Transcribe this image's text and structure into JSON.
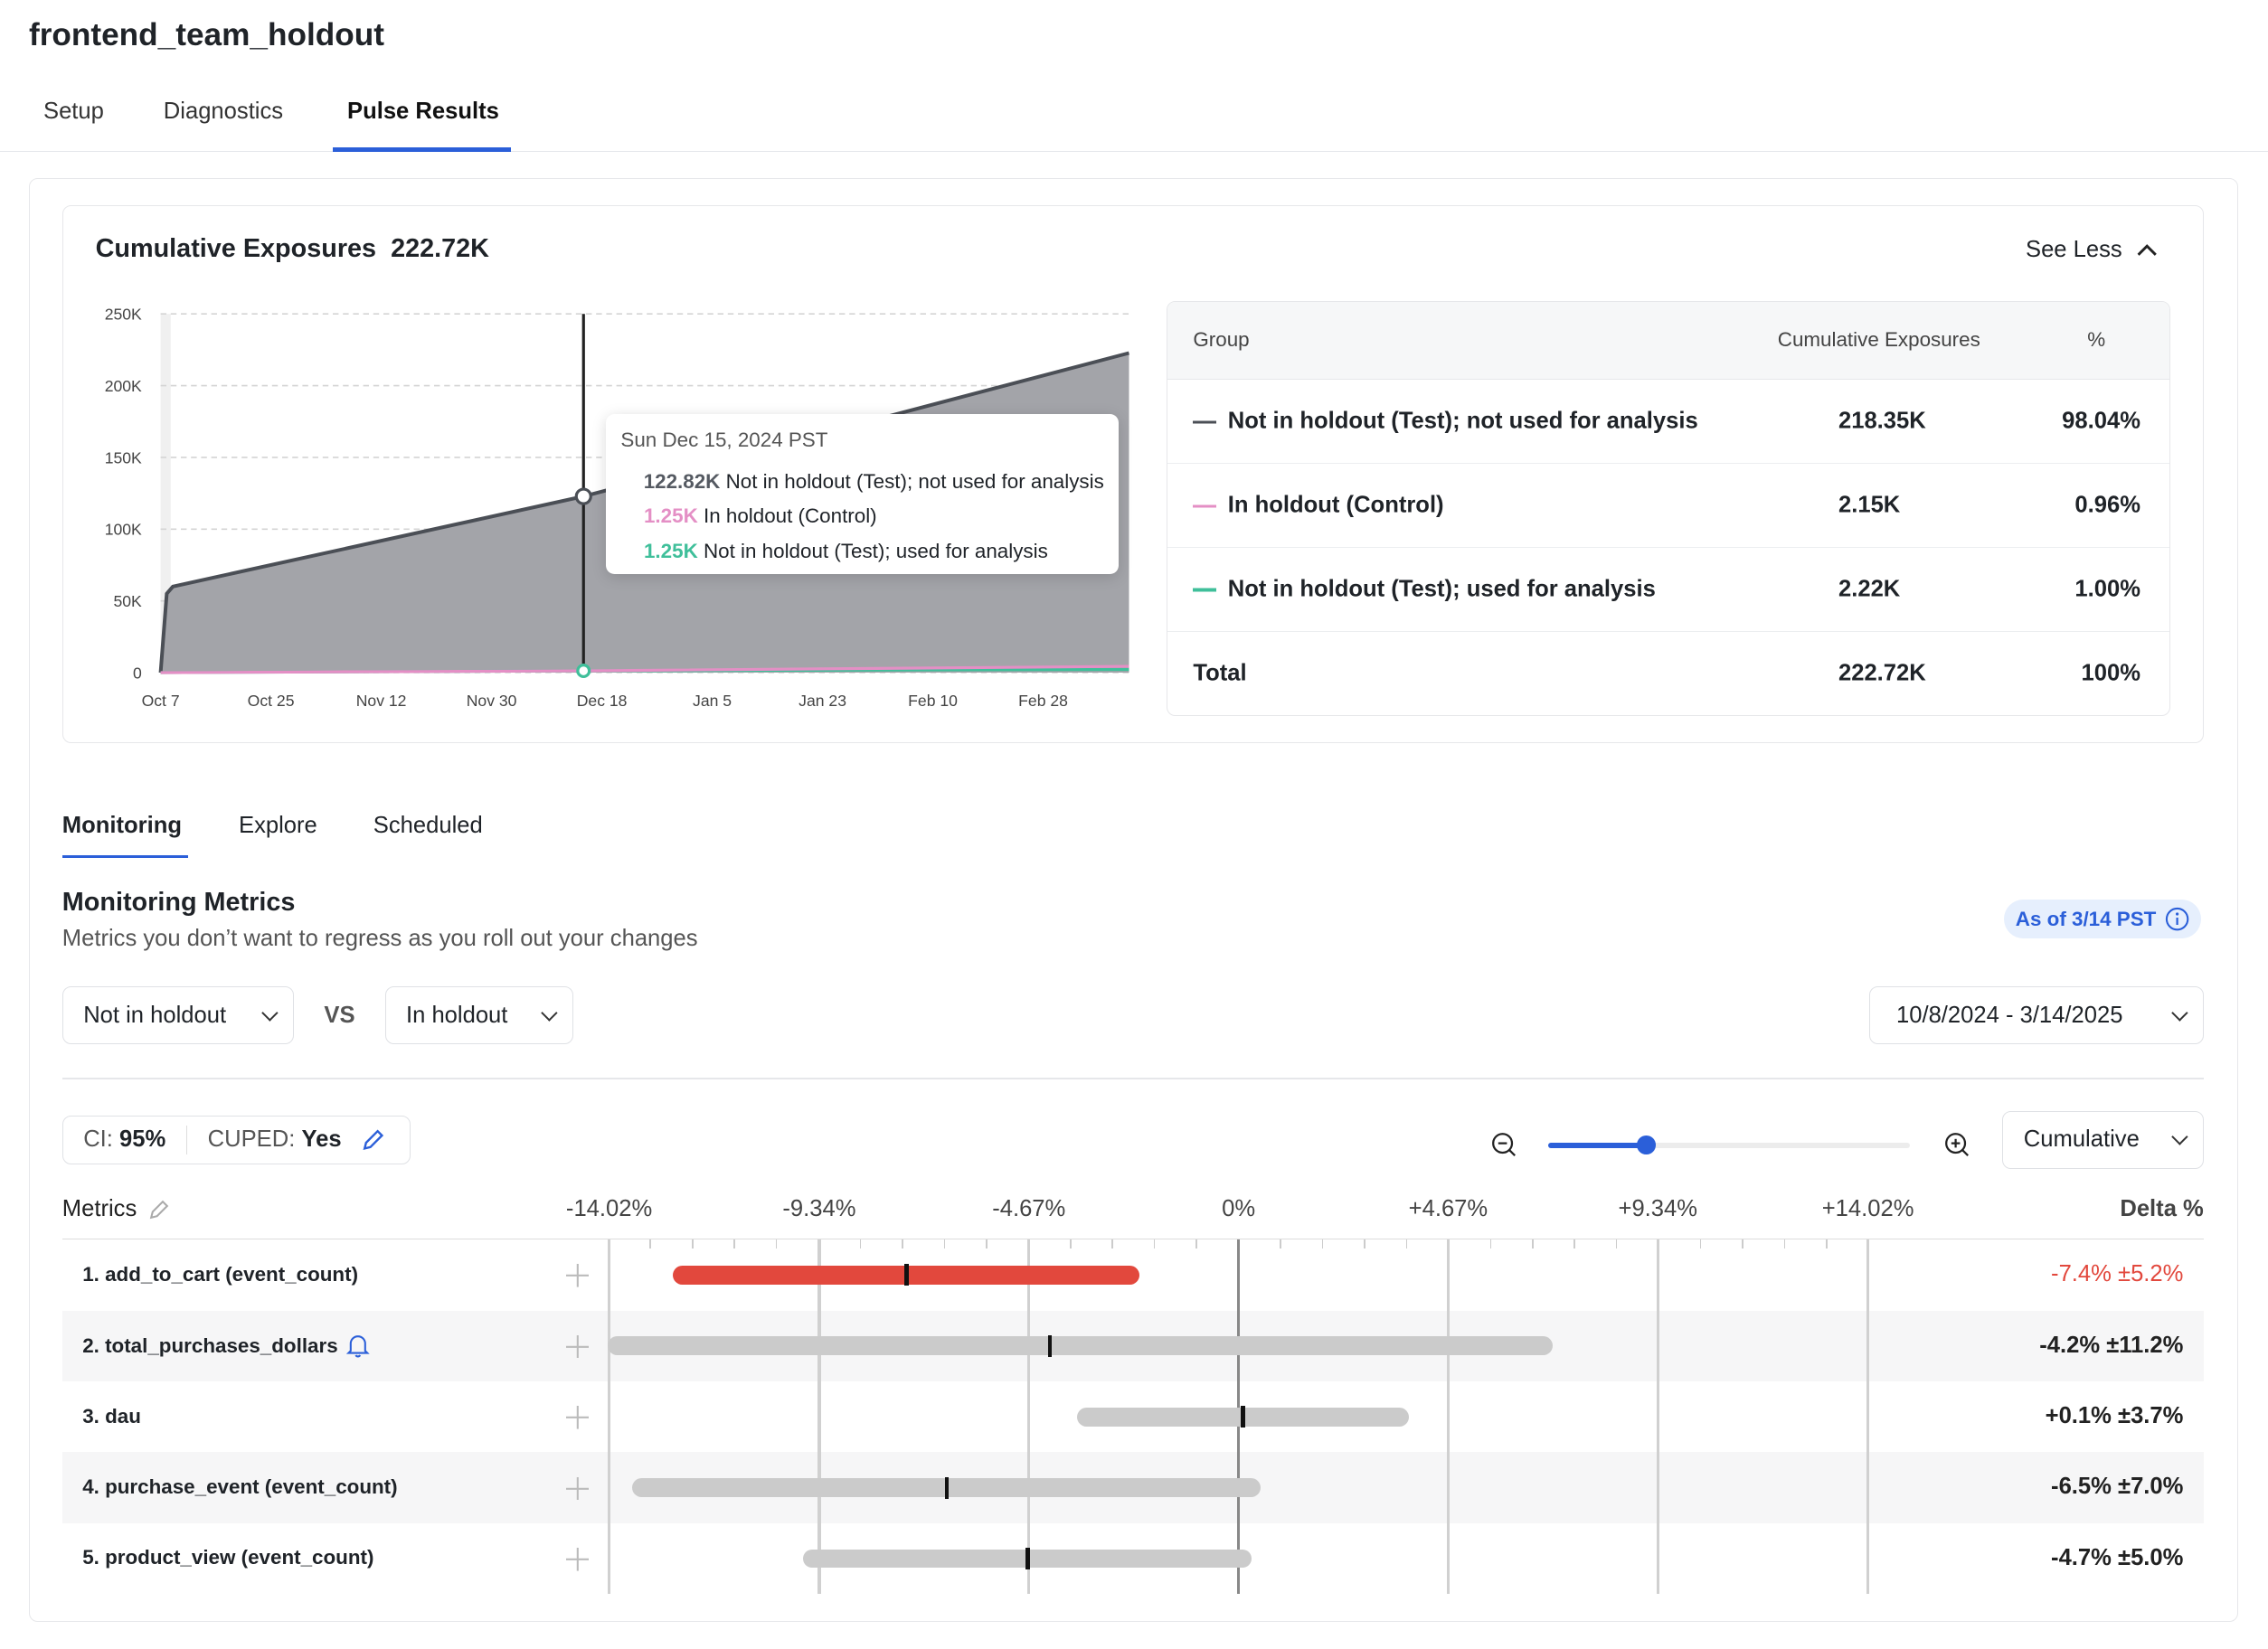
{
  "header": {
    "title": "frontend_team_holdout",
    "tabs": [
      {
        "label": "Setup"
      },
      {
        "label": "Diagnostics"
      },
      {
        "label": "Pulse Results",
        "active": true
      }
    ]
  },
  "exposures": {
    "title": "Cumulative Exposures",
    "total": "222.72K",
    "see_less": "See Less",
    "table": {
      "headers": [
        "Group",
        "Cumulative Exposures",
        "%"
      ],
      "rows": [
        {
          "group": "Not in holdout (Test); not used for analysis",
          "value": "218.35K",
          "pct": "98.04%",
          "color": "#4b4f56"
        },
        {
          "group": "In holdout (Control)",
          "value": "2.15K",
          "pct": "0.96%",
          "color": "#e48fc5"
        },
        {
          "group": "Not in holdout (Test); used for analysis",
          "value": "2.22K",
          "pct": "1.00%",
          "color": "#3fbf9a"
        },
        {
          "group": "Total",
          "value": "222.72K",
          "pct": "100%"
        }
      ]
    },
    "tooltip": {
      "date": "Sun Dec 15, 2024 PST",
      "items": [
        {
          "value": "122.82K",
          "label": "Not in holdout (Test); not used for analysis",
          "color": "#555a62"
        },
        {
          "value": "1.25K",
          "label": "In holdout (Control)",
          "color": "#e48fc5"
        },
        {
          "value": "1.25K",
          "label": "Not in holdout (Test); used for analysis",
          "color": "#3fbf9a"
        }
      ]
    }
  },
  "chart_data": {
    "type": "area",
    "xlabel": "",
    "ylabel": "",
    "x_ticks": [
      "Oct 7",
      "Oct 25",
      "Nov 12",
      "Nov 30",
      "Dec 18",
      "Jan 5",
      "Jan 23",
      "Feb 10",
      "Feb 28"
    ],
    "y_ticks": [
      "0",
      "50K",
      "100K",
      "150K",
      "200K",
      "250K"
    ],
    "ylim": [
      0,
      250000
    ],
    "xlim": [
      "2024-10-07",
      "2025-03-14"
    ],
    "grid": true,
    "hover_date": "2024-12-15",
    "series": [
      {
        "name": "Not in holdout (Test); not used for analysis",
        "color": "#4b4f56",
        "points": [
          [
            "2024-10-07",
            0
          ],
          [
            "2024-10-08",
            55000
          ],
          [
            "2024-10-09",
            60000
          ],
          [
            "2024-12-15",
            122820
          ],
          [
            "2025-03-14",
            222720
          ]
        ]
      },
      {
        "name": "In holdout (Control)",
        "color": "#e48fc5",
        "points": [
          [
            "2024-10-07",
            0
          ],
          [
            "2024-12-15",
            1250
          ],
          [
            "2025-03-14",
            4370
          ]
        ]
      },
      {
        "name": "Not in holdout (Test); used for analysis",
        "color": "#3fbf9a",
        "points": [
          [
            "2024-10-07",
            0
          ],
          [
            "2024-12-15",
            1250
          ],
          [
            "2025-03-14",
            2220
          ]
        ]
      }
    ]
  },
  "subtabs": [
    {
      "label": "Monitoring",
      "active": true
    },
    {
      "label": "Explore"
    },
    {
      "label": "Scheduled"
    }
  ],
  "monitoring": {
    "title": "Monitoring Metrics",
    "subtitle": "Metrics you don’t want to regress as you roll out your changes",
    "as_of": "As of 3/14 PST",
    "group_a": "Not in holdout",
    "vs": "VS",
    "group_b": "In holdout",
    "date_range": "10/8/2024 - 3/14/2025",
    "ci_label": "CI:",
    "ci": "95%",
    "cuped_label": "CUPED:",
    "cuped": "Yes",
    "zoom_level": 0.27,
    "mode": "Cumulative",
    "metrics_header": "Metrics",
    "delta_header": "Delta %",
    "axis_ticks": [
      "-14.02%",
      "-9.34%",
      "-4.67%",
      "0%",
      "+4.67%",
      "+9.34%",
      "+14.02%"
    ],
    "colors": {
      "negative": "#e2483d",
      "neutral": "#cbcbcb",
      "accent": "#2b5fd9"
    },
    "rows": [
      {
        "label": "1. add_to_cart (event_count)",
        "delta": -7.4,
        "ci": 5.2,
        "text": "-7.4% ±5.2%",
        "significant": true
      },
      {
        "label": "2. total_purchases_dollars",
        "delta": -4.2,
        "ci": 11.2,
        "text": "-4.2% ±11.2%",
        "bell": true
      },
      {
        "label": "3. dau",
        "delta": 0.1,
        "ci": 3.7,
        "text": "+0.1% ±3.7%"
      },
      {
        "label": "4. purchase_event (event_count)",
        "delta": -6.5,
        "ci": 7.0,
        "text": "-6.5% ±7.0%"
      },
      {
        "label": "5. product_view (event_count)",
        "delta": -4.7,
        "ci": 5.0,
        "text": "-4.7% ±5.0%"
      }
    ]
  }
}
